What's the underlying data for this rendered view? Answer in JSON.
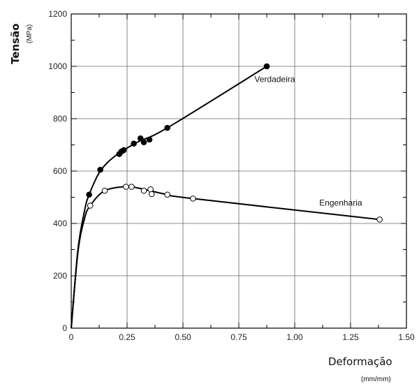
{
  "chart_data": {
    "type": "line",
    "title": "",
    "ylabel": "Tensão",
    "ylabel_unit": "(MPa)",
    "xlabel": "Deformação",
    "xlabel_unit": "(mm/mm)",
    "xlim": [
      0,
      1.5
    ],
    "ylim": [
      0,
      1200
    ],
    "xticks": [
      "0",
      "0.25",
      "0.50",
      "0.75",
      "1.00",
      "1.25",
      "1.50"
    ],
    "xtick_values": [
      0,
      0.25,
      0.5,
      0.75,
      1.0,
      1.25,
      1.5
    ],
    "yticks": [
      "0",
      "200",
      "400",
      "600",
      "800",
      "1000",
      "1200"
    ],
    "ytick_values": [
      0,
      200,
      400,
      600,
      800,
      1000,
      1200
    ],
    "grid": true,
    "series": [
      {
        "name": "Verdadeira",
        "marker": "filled-circle",
        "color": "#000000",
        "points": [
          {
            "x": 0.08,
            "y": 510
          },
          {
            "x": 0.13,
            "y": 605
          },
          {
            "x": 0.215,
            "y": 665
          },
          {
            "x": 0.225,
            "y": 675
          },
          {
            "x": 0.235,
            "y": 680
          },
          {
            "x": 0.28,
            "y": 705
          },
          {
            "x": 0.31,
            "y": 725
          },
          {
            "x": 0.325,
            "y": 710
          },
          {
            "x": 0.35,
            "y": 720
          },
          {
            "x": 0.43,
            "y": 765
          },
          {
            "x": 0.875,
            "y": 1000
          }
        ],
        "curve": [
          {
            "x": 0,
            "y": 0
          },
          {
            "x": 0.03,
            "y": 300
          },
          {
            "x": 0.06,
            "y": 450
          },
          {
            "x": 0.08,
            "y": 510
          },
          {
            "x": 0.13,
            "y": 600
          },
          {
            "x": 0.2,
            "y": 660
          },
          {
            "x": 0.3,
            "y": 712
          },
          {
            "x": 0.43,
            "y": 765
          },
          {
            "x": 0.875,
            "y": 1000
          }
        ]
      },
      {
        "name": "Engenharia",
        "marker": "open-circle",
        "color": "#000000",
        "points": [
          {
            "x": 0.085,
            "y": 468
          },
          {
            "x": 0.15,
            "y": 525
          },
          {
            "x": 0.245,
            "y": 540
          },
          {
            "x": 0.27,
            "y": 540
          },
          {
            "x": 0.325,
            "y": 525
          },
          {
            "x": 0.355,
            "y": 530
          },
          {
            "x": 0.36,
            "y": 512
          },
          {
            "x": 0.43,
            "y": 510
          },
          {
            "x": 0.545,
            "y": 495
          },
          {
            "x": 1.38,
            "y": 415
          }
        ],
        "curve": [
          {
            "x": 0,
            "y": 0
          },
          {
            "x": 0.03,
            "y": 290
          },
          {
            "x": 0.06,
            "y": 420
          },
          {
            "x": 0.085,
            "y": 468
          },
          {
            "x": 0.15,
            "y": 525
          },
          {
            "x": 0.25,
            "y": 541
          },
          {
            "x": 0.3,
            "y": 535
          },
          {
            "x": 0.43,
            "y": 510
          },
          {
            "x": 0.545,
            "y": 495
          },
          {
            "x": 1.38,
            "y": 415
          }
        ]
      }
    ]
  }
}
